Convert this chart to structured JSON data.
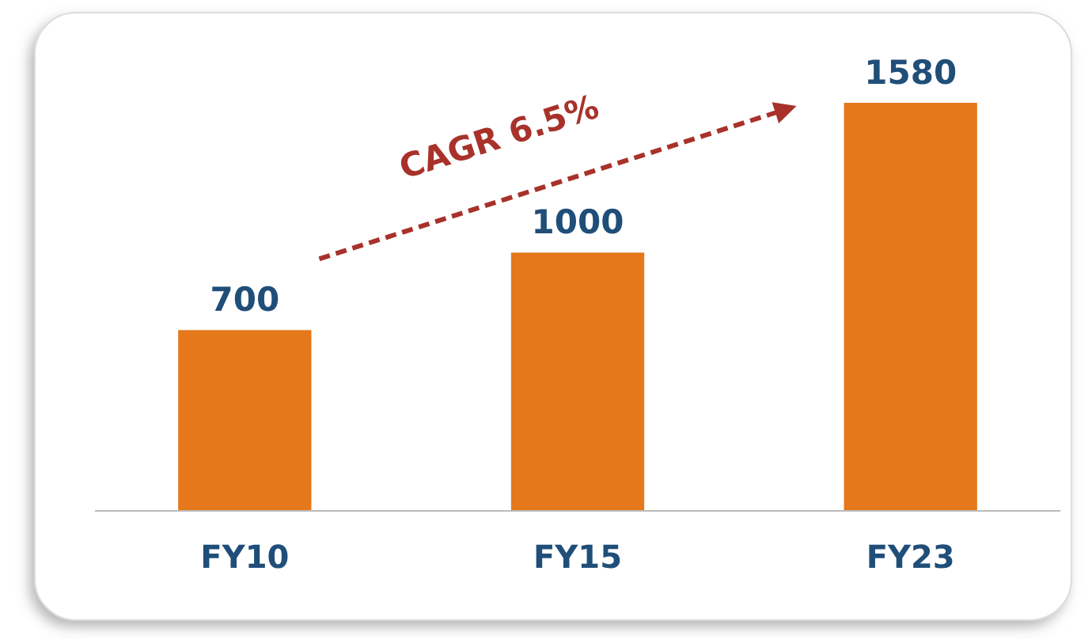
{
  "chart_data": {
    "type": "bar",
    "categories": [
      "FY10",
      "FY15",
      "FY23"
    ],
    "values": [
      700,
      1000,
      1580
    ],
    "color": "#e5781a",
    "data_labels": true,
    "annotations": [
      "CAGR 6.5%"
    ]
  }
}
